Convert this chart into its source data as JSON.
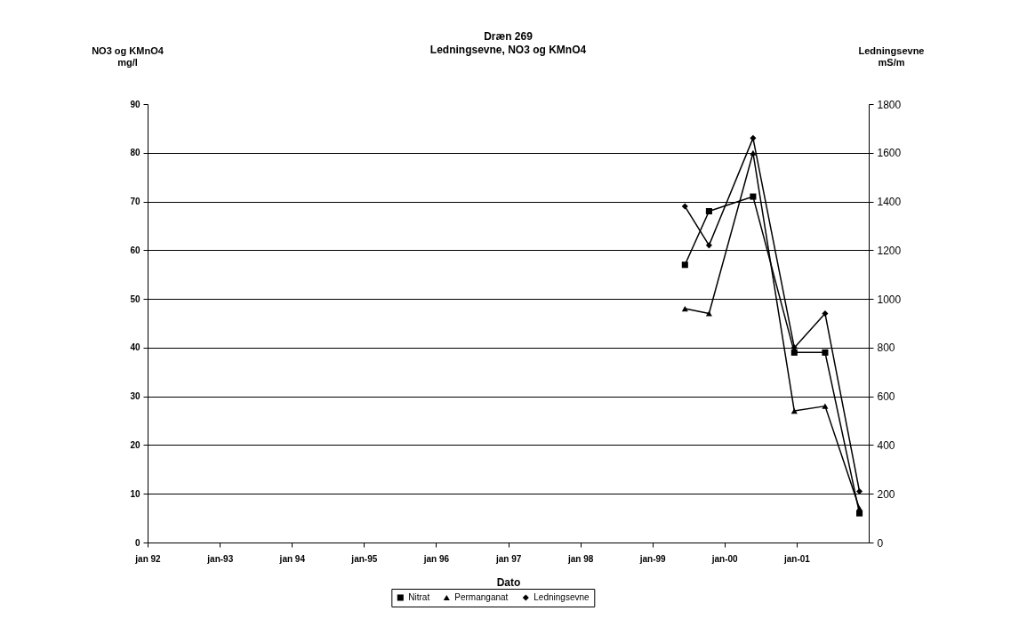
{
  "chart_data": {
    "type": "line",
    "title": "Dræn 269",
    "subtitle": "Ledningsevne, NO3 og KMnO4",
    "xlabel": "Dato",
    "ylabel": "NO3 og KMnO4\nmg/l",
    "y2label": "Ledningsevne\nmS/m",
    "x": [
      "1999-06-15",
      "1999-10-15",
      "2000-05-25",
      "2000-12-20",
      "2001-05-25",
      "2001-11-15"
    ],
    "series": [
      {
        "name": "Nitrat",
        "color": "#000000",
        "marker": "square",
        "values": [
          57,
          68,
          71,
          39,
          39,
          6
        ]
      },
      {
        "name": "Permanganat",
        "color": "#000000",
        "marker": "triangle",
        "values": [
          48,
          47,
          80,
          27,
          28,
          7
        ]
      },
      {
        "name": "Ledningsevne",
        "color": "#000000",
        "marker": "diamond",
        "axis": "y2",
        "values": [
          1380,
          1220,
          1660,
          800,
          940,
          210
        ]
      }
    ],
    "xlim": [
      "1992-01",
      "2002-01"
    ],
    "xticks": [
      {
        "value": "1992-01",
        "label": "jan 92"
      },
      {
        "value": "1993-01",
        "label": "jan-93"
      },
      {
        "value": "1994-01",
        "label": "jan 94"
      },
      {
        "value": "1995-01",
        "label": "jan-95"
      },
      {
        "value": "1996-01",
        "label": "jan 96"
      },
      {
        "value": "1997-01",
        "label": "jan 97"
      },
      {
        "value": "1998-01",
        "label": "jan 98"
      },
      {
        "value": "1999-01",
        "label": "jan-99"
      },
      {
        "value": "2000-01",
        "label": "jan-00"
      },
      {
        "value": "2001-01",
        "label": "jan-01"
      }
    ],
    "ylim": [
      0,
      90
    ],
    "yticks": [
      0,
      10,
      20,
      30,
      40,
      50,
      60,
      70,
      80,
      90
    ],
    "y2lim": [
      0,
      1800
    ],
    "y2ticks": [
      0,
      200,
      400,
      600,
      800,
      1000,
      1200,
      1400,
      1600,
      1800
    ],
    "grid": "y",
    "legend": "bottom",
    "line_style": "solid"
  }
}
